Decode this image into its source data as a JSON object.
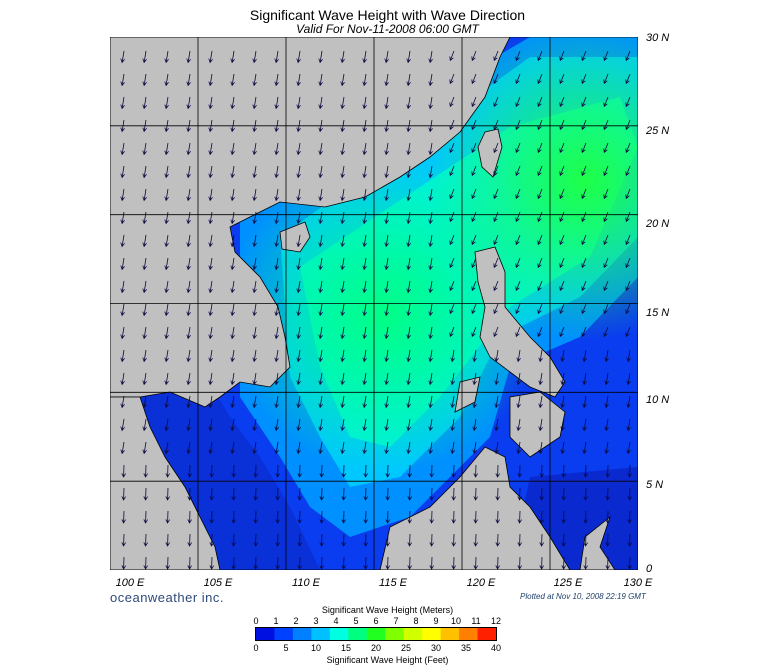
{
  "header": {
    "title": "Significant Wave Height with Wave Direction",
    "subtitle": "Valid For Nov-11-2008 06:00 GMT"
  },
  "map": {
    "lon_labels": [
      "100 E",
      "105 E",
      "110 E",
      "115 E",
      "120 E",
      "125 E",
      "130 E"
    ],
    "lat_labels": [
      "30 N",
      "25 N",
      "20 N",
      "15 N",
      "10 N",
      "5 N",
      "0"
    ],
    "colors": {
      "land": "#c0c0c0",
      "coast": "#000000",
      "grid": "#000000",
      "arrow": "#0a0a40"
    },
    "arrow_direction": "toward southwest / south (NE monsoon)"
  },
  "footer": {
    "brand": "oceanweather inc.",
    "plotted": "Plotted at Nov 10, 2008 22:19 GMT"
  },
  "colorbar": {
    "meters_title": "Significant Wave Height (Meters)",
    "feet_title": "Significant Wave Height (Feet)",
    "meters_ticks": [
      "0",
      "1",
      "2",
      "3",
      "4",
      "5",
      "6",
      "7",
      "8",
      "9",
      "10",
      "11",
      "12"
    ],
    "feet_ticks": [
      "0",
      "5",
      "10",
      "15",
      "20",
      "25",
      "30",
      "35",
      "40"
    ],
    "colors": [
      "#0010e0",
      "#0040ff",
      "#0080ff",
      "#00c0ff",
      "#00ffe0",
      "#00ff80",
      "#20ff20",
      "#80ff00",
      "#d0ff00",
      "#ffff00",
      "#ffc000",
      "#ff8000",
      "#ff2000"
    ]
  }
}
